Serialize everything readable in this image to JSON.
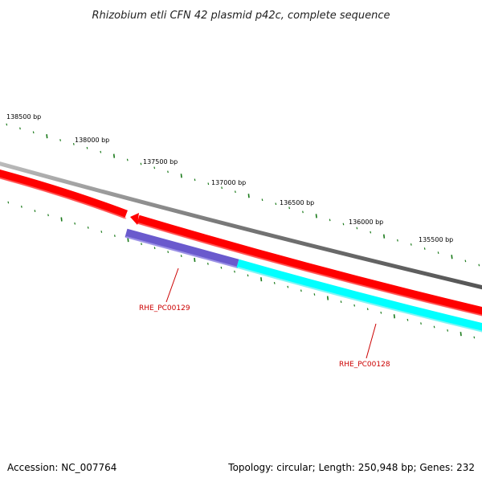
{
  "title": "Rhizobium etli CFN 42 plasmid p42c, complete sequence",
  "footer": {
    "accession": "Accession: NC_007764",
    "summary": "Topology: circular; Length: 250,948 bp; Genes: 232"
  },
  "tick_labels": [
    "138500 bp",
    "138000 bp",
    "137500 bp",
    "137000 bp",
    "136500 bp",
    "136000 bp",
    "135500 bp"
  ],
  "genes": [
    {
      "id": "RHE_PC00129",
      "label": "RHE_PC00129",
      "color": "#6a5acd"
    },
    {
      "id": "RHE_PC00128",
      "label": "RHE_PC00128",
      "color": "#00ffff"
    }
  ],
  "colors": {
    "backbone": "#808080",
    "cds_arrow": "#ff0000",
    "tick": "#1a7a1a",
    "gene_label": "#cc0000"
  }
}
